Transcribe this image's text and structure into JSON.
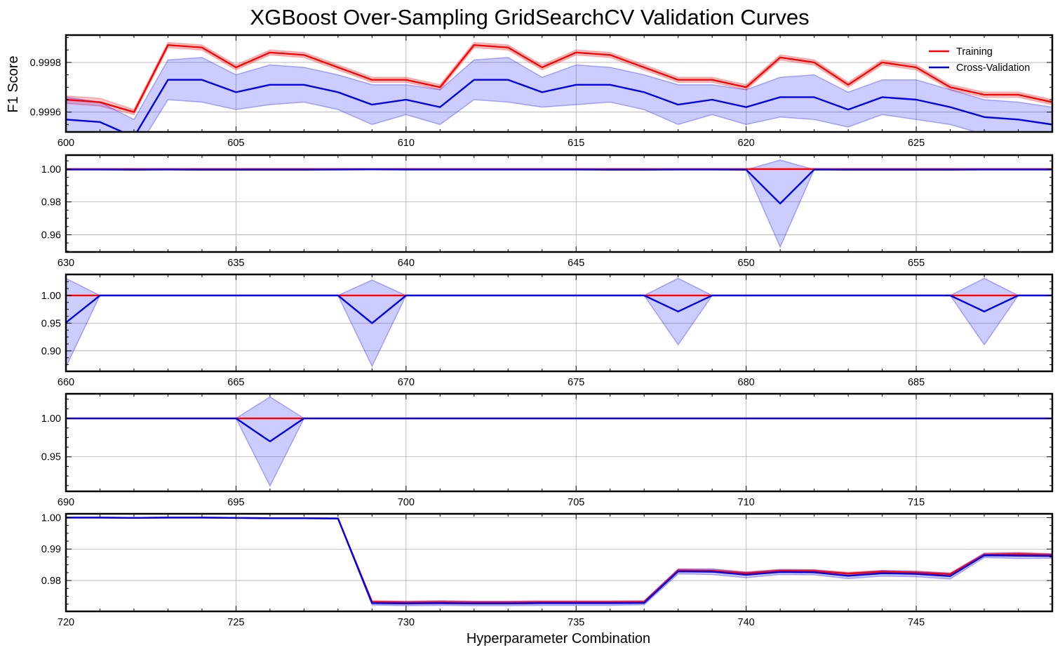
{
  "chart_data": {
    "type": "line",
    "title": "XGBoost Over-Sampling GridSearchCV Validation Curves",
    "xlabel": "Hyperparameter Combination",
    "ylabel": "F1 Score",
    "grid": true,
    "legend": {
      "placement": "top-right",
      "entries": [
        "Training",
        "Cross-Validation"
      ]
    },
    "colors": {
      "training": "#ff0000",
      "cv": "#0000ee",
      "cv_band": "#0000ff",
      "train_band": "#ff0000"
    },
    "panels": [
      {
        "xlim": [
          600,
          629
        ],
        "ylim": [
          0.99952,
          0.99991
        ],
        "xticks": [
          600,
          605,
          610,
          615,
          620,
          625
        ],
        "xtick_labels": [
          "600",
          "605",
          "610",
          "615",
          "620",
          "625"
        ],
        "yticks": [
          0.9996,
          0.9998
        ],
        "ytick_labels": [
          "0.9996",
          "0.9998"
        ],
        "series": [
          {
            "name": "Training",
            "x0": 600,
            "values": [
              0.99965,
              0.99964,
              0.9996,
              0.99987,
              0.99986,
              0.99978,
              0.99984,
              0.99983,
              0.99978,
              0.99973,
              0.99973,
              0.9997,
              0.99987,
              0.99986,
              0.99978,
              0.99984,
              0.99983,
              0.99978,
              0.99973,
              0.99973,
              0.9997,
              0.99982,
              0.9998,
              0.99971,
              0.9998,
              0.99978,
              0.9997,
              0.99967,
              0.99967,
              0.99964
            ],
            "std": [
              1.5e-05,
              1.5e-05,
              1e-05,
              1e-05,
              1e-05,
              1e-05,
              1e-05,
              1e-05,
              1e-05,
              1e-05,
              1e-05,
              1e-05,
              1e-05,
              1e-05,
              1e-05,
              1e-05,
              1e-05,
              1e-05,
              1e-05,
              1e-05,
              1e-05,
              1e-05,
              1e-05,
              1e-05,
              1e-05,
              1e-05,
              1e-05,
              1e-05,
              1e-05,
              1e-05
            ]
          },
          {
            "name": "Cross-Validation",
            "x0": 600,
            "values": [
              0.99957,
              0.99956,
              0.9995,
              0.99973,
              0.99973,
              0.99968,
              0.99971,
              0.99971,
              0.99968,
              0.99963,
              0.99965,
              0.99962,
              0.99973,
              0.99973,
              0.99968,
              0.99971,
              0.99971,
              0.99968,
              0.99963,
              0.99965,
              0.99962,
              0.99966,
              0.99966,
              0.99961,
              0.99966,
              0.99965,
              0.99962,
              0.99958,
              0.99957,
              0.99955
            ],
            "std": [
              9e-05,
              8e-05,
              7e-05,
              8e-05,
              9e-05,
              7e-05,
              8e-05,
              7e-05,
              7e-05,
              8e-05,
              6e-05,
              7e-05,
              8e-05,
              9e-05,
              6e-05,
              8e-05,
              7e-05,
              7e-05,
              8e-05,
              6e-05,
              7e-05,
              8e-05,
              9e-05,
              7e-05,
              7e-05,
              8e-05,
              7e-05,
              7e-05,
              7e-05,
              7e-05
            ]
          }
        ]
      },
      {
        "xlim": [
          630,
          659
        ],
        "ylim": [
          0.9495,
          1.0085
        ],
        "xticks": [
          630,
          635,
          640,
          645,
          650,
          655
        ],
        "xtick_labels": [
          "630",
          "635",
          "640",
          "645",
          "650",
          "655"
        ],
        "yticks": [
          0.96,
          0.98,
          1.0
        ],
        "ytick_labels": [
          "0.96",
          "0.98",
          "1.00"
        ],
        "series": [
          {
            "name": "Training",
            "x0": 630,
            "values": [
              1.0,
              1.0,
              1.0,
              1.0,
              1.0,
              1.0,
              1.0,
              1.0,
              1.0,
              1.0,
              1.0,
              1.0,
              1.0,
              1.0,
              1.0,
              1.0,
              1.0,
              1.0,
              1.0,
              1.0,
              1.0,
              1.0,
              1.0,
              1.0,
              1.0,
              1.0,
              1.0,
              1.0,
              1.0,
              1.0
            ],
            "std": [
              0,
              0,
              0,
              0,
              0,
              0,
              0,
              0,
              0,
              0,
              0,
              0,
              0,
              0,
              0,
              0,
              0,
              0,
              0,
              0,
              0,
              0,
              0,
              0,
              0,
              0,
              0,
              0,
              0,
              0
            ]
          },
          {
            "name": "Cross-Validation",
            "x0": 630,
            "values": [
              0.9997,
              0.9997,
              0.9996,
              0.9997,
              0.9996,
              0.9996,
              0.9996,
              0.9996,
              0.9997,
              0.9998,
              0.9997,
              0.9997,
              0.9997,
              0.9997,
              0.9997,
              0.9997,
              0.9996,
              0.9996,
              0.9997,
              0.9997,
              0.9996,
              0.979,
              0.9997,
              0.9996,
              0.9996,
              0.9996,
              0.9996,
              0.9997,
              0.9997,
              0.9997
            ],
            "std": [
              0,
              0,
              0,
              0,
              0,
              0,
              0,
              0,
              0,
              0,
              0,
              0,
              0,
              0,
              0,
              0,
              0,
              0,
              0,
              0,
              0,
              0.0265,
              0,
              0,
              0,
              0,
              0,
              0,
              0,
              0
            ]
          }
        ]
      },
      {
        "xlim": [
          660,
          689
        ],
        "ylim": [
          0.863,
          1.038
        ],
        "xticks": [
          660,
          665,
          670,
          675,
          680,
          685
        ],
        "xtick_labels": [
          "660",
          "665",
          "670",
          "675",
          "680",
          "685"
        ],
        "yticks": [
          0.9,
          0.95,
          1.0
        ],
        "ytick_labels": [
          "0.90",
          "0.95",
          "1.00"
        ],
        "series": [
          {
            "name": "Training",
            "x0": 660,
            "values": [
              1.0,
              1.0,
              1.0,
              1.0,
              1.0,
              1.0,
              1.0,
              1.0,
              1.0,
              1.0,
              1.0,
              1.0,
              1.0,
              1.0,
              1.0,
              1.0,
              1.0,
              1.0,
              1.0,
              1.0,
              1.0,
              1.0,
              1.0,
              1.0,
              1.0,
              1.0,
              1.0,
              1.0,
              1.0,
              1.0
            ],
            "std": [
              0,
              0,
              0,
              0,
              0,
              0,
              0,
              0,
              0,
              0,
              0,
              0,
              0,
              0,
              0,
              0,
              0,
              0,
              0,
              0,
              0,
              0,
              0,
              0,
              0,
              0,
              0,
              0,
              0,
              0
            ]
          },
          {
            "name": "Cross-Validation",
            "x0": 660,
            "values": [
              0.951,
              1.0,
              1.0,
              1.0,
              1.0,
              1.0,
              1.0,
              1.0,
              1.0,
              0.95,
              1.0,
              1.0,
              1.0,
              1.0,
              1.0,
              1.0,
              1.0,
              1.0,
              0.971,
              1.0,
              1.0,
              1.0,
              1.0,
              1.0,
              1.0,
              1.0,
              1.0,
              0.971,
              1.0,
              1.0
            ],
            "std": [
              0.08,
              0,
              0,
              0,
              0,
              0,
              0,
              0,
              0,
              0.078,
              0,
              0,
              0,
              0,
              0,
              0,
              0,
              0,
              0.06,
              0,
              0,
              0,
              0,
              0,
              0,
              0,
              0,
              0.06,
              0,
              0
            ]
          }
        ]
      },
      {
        "xlim": [
          690,
          719
        ],
        "ylim": [
          0.905,
          1.032
        ],
        "xticks": [
          690,
          695,
          700,
          705,
          710,
          715
        ],
        "xtick_labels": [
          "690",
          "695",
          "700",
          "705",
          "710",
          "715"
        ],
        "yticks": [
          0.95,
          1.0
        ],
        "ytick_labels": [
          "0.95",
          "1.00"
        ],
        "series": [
          {
            "name": "Training",
            "x0": 690,
            "values": [
              1.0,
              1.0,
              1.0,
              1.0,
              1.0,
              1.0,
              1.0,
              1.0,
              1.0,
              1.0,
              1.0,
              1.0,
              1.0,
              1.0,
              1.0,
              1.0,
              1.0,
              1.0,
              1.0,
              1.0,
              1.0,
              1.0,
              1.0,
              1.0,
              1.0,
              1.0,
              1.0,
              1.0,
              1.0,
              1.0
            ],
            "std": [
              0,
              0,
              0,
              0,
              0,
              0,
              0,
              0,
              0,
              0,
              0,
              0,
              0,
              0,
              0,
              0,
              0,
              0,
              0,
              0,
              0,
              0,
              0,
              0,
              0,
              0,
              0,
              0,
              0,
              0
            ]
          },
          {
            "name": "Cross-Validation",
            "x0": 690,
            "values": [
              1.0,
              1.0,
              1.0,
              1.0,
              1.0,
              1.0,
              0.97,
              1.0,
              1.0,
              1.0,
              1.0,
              1.0,
              1.0,
              1.0,
              1.0,
              1.0,
              1.0,
              1.0,
              1.0,
              1.0,
              1.0,
              1.0,
              1.0,
              1.0,
              1.0,
              1.0,
              1.0,
              1.0,
              1.0,
              1.0
            ],
            "std": [
              0,
              0,
              0,
              0,
              0,
              0,
              0.058,
              0,
              0,
              0,
              0,
              0,
              0,
              0,
              0,
              0,
              0,
              0,
              0,
              0,
              0,
              0,
              0,
              0,
              0,
              0,
              0,
              0,
              0,
              0
            ]
          }
        ]
      },
      {
        "xlim": [
          720,
          749
        ],
        "ylim": [
          0.9702,
          1.0012
        ],
        "xticks": [
          720,
          725,
          730,
          735,
          740,
          745
        ],
        "xtick_labels": [
          "720",
          "725",
          "730",
          "735",
          "740",
          "745"
        ],
        "yticks": [
          0.98,
          0.99,
          1.0
        ],
        "ytick_labels": [
          "0.98",
          "0.99",
          "1.00"
        ],
        "series": [
          {
            "name": "Training",
            "x0": 720,
            "values": [
              1.0,
              1.0,
              0.9999,
              1.0,
              1.0,
              0.9999,
              0.9998,
              0.9998,
              0.9997,
              0.9732,
              0.973,
              0.9731,
              0.973,
              0.973,
              0.9731,
              0.9731,
              0.9731,
              0.9732,
              0.9832,
              0.9831,
              0.9823,
              0.9831,
              0.983,
              0.9822,
              0.9828,
              0.9825,
              0.982,
              0.9882,
              0.9884,
              0.9881
            ],
            "std": [
              0,
              0,
              0,
              0,
              0,
              0,
              0,
              0,
              0,
              0.0004,
              0.0004,
              0.0005,
              0.0004,
              0.0004,
              0.0004,
              0.0004,
              0.0004,
              0.0004,
              0.0004,
              0.0004,
              0.0004,
              0.0004,
              0.0004,
              0.0004,
              0.0004,
              0.0004,
              0.0004,
              0.0004,
              0.0005,
              0.0004
            ]
          },
          {
            "name": "Cross-Validation",
            "x0": 720,
            "values": [
              1.0,
              1.0,
              0.9999,
              1.0,
              1.0,
              0.9999,
              0.9998,
              0.9998,
              0.9997,
              0.9728,
              0.9727,
              0.9728,
              0.9727,
              0.9727,
              0.9728,
              0.9728,
              0.9728,
              0.9729,
              0.9829,
              0.9828,
              0.9818,
              0.9827,
              0.9826,
              0.9815,
              0.9823,
              0.9821,
              0.9814,
              0.988,
              0.9879,
              0.9878
            ],
            "std": [
              0,
              0,
              0,
              0,
              0,
              0,
              0,
              0,
              0,
              0.0006,
              0.0007,
              0.0007,
              0.0007,
              0.0007,
              0.0007,
              0.0007,
              0.0007,
              0.0006,
              0.0008,
              0.0009,
              0.0009,
              0.0008,
              0.0008,
              0.0009,
              0.0009,
              0.0009,
              0.0009,
              0.0007,
              0.0009,
              0.0007
            ]
          }
        ]
      }
    ]
  }
}
